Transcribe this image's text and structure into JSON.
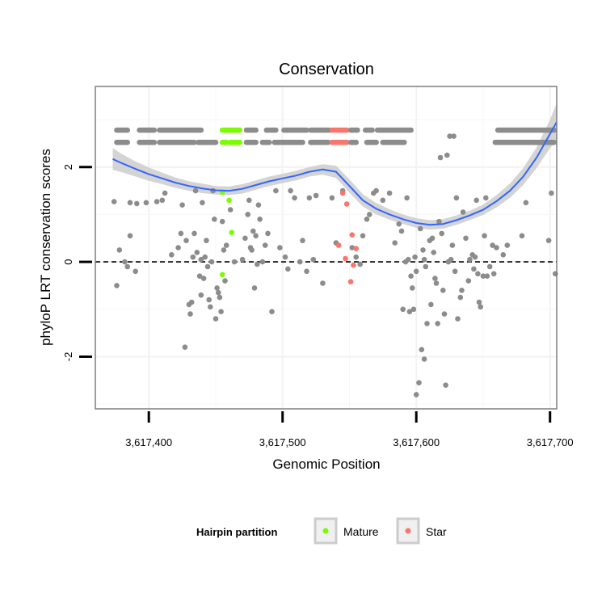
{
  "chart_data": {
    "type": "scatter",
    "title": "Conservation",
    "xlabel": "Genomic Position",
    "ylabel": "phyloP LRT conservation scores",
    "xlim": [
      3617360,
      3617705
    ],
    "ylim": [
      -3.1,
      3.7
    ],
    "x_ticks": [
      3617400,
      3617500,
      3617600,
      3617700
    ],
    "x_tick_labels": [
      "3,617,400",
      "3,617,500",
      "3,617,600",
      "3,617,700"
    ],
    "y_ticks": [
      -2,
      0,
      2
    ],
    "y_tick_labels": [
      "-2",
      "0",
      "2"
    ],
    "grid": true,
    "reference_line": {
      "y": 0,
      "style": "dashed"
    },
    "legend": {
      "title": "Hairpin partition",
      "placement": "bottom",
      "entries": [
        {
          "name": "Mature",
          "color": "#7cfc00"
        },
        {
          "name": "Star",
          "color": "#f8766d"
        }
      ]
    },
    "colors": {
      "other": "#8c8c8c",
      "mature": "#7cfc00",
      "star": "#f8766d",
      "smooth": "#3366ff",
      "band": "#cccccc"
    },
    "top_bands": [
      {
        "y": 2.78,
        "segments": [
          {
            "from": 3617376,
            "to": 3617384,
            "group": "other"
          },
          {
            "from": 3617393,
            "to": 3617404,
            "group": "other"
          },
          {
            "from": 3617408,
            "to": 3617439,
            "group": "other"
          },
          {
            "from": 3617455,
            "to": 3617468,
            "group": "mature"
          },
          {
            "from": 3617473,
            "to": 3617480,
            "group": "other"
          },
          {
            "from": 3617488,
            "to": 3617495,
            "group": "other"
          },
          {
            "from": 3617501,
            "to": 3617518,
            "group": "other"
          },
          {
            "from": 3617521,
            "to": 3617535,
            "group": "other"
          },
          {
            "from": 3617537,
            "to": 3617548,
            "group": "star"
          },
          {
            "from": 3617551,
            "to": 3617556,
            "group": "other"
          },
          {
            "from": 3617562,
            "to": 3617567,
            "group": "other"
          },
          {
            "from": 3617571,
            "to": 3617596,
            "group": "other"
          },
          {
            "from": 3617661,
            "to": 3617703,
            "group": "other"
          }
        ]
      },
      {
        "y": 2.52,
        "segments": [
          {
            "from": 3617376,
            "to": 3617384,
            "group": "other"
          },
          {
            "from": 3617393,
            "to": 3617404,
            "group": "other"
          },
          {
            "from": 3617408,
            "to": 3617434,
            "group": "other"
          },
          {
            "from": 3617437,
            "to": 3617450,
            "group": "other"
          },
          {
            "from": 3617455,
            "to": 3617458,
            "group": "mature"
          },
          {
            "from": 3617461,
            "to": 3617468,
            "group": "mature"
          },
          {
            "from": 3617473,
            "to": 3617480,
            "group": "other"
          },
          {
            "from": 3617485,
            "to": 3617490,
            "group": "other"
          },
          {
            "from": 3617494,
            "to": 3617515,
            "group": "other"
          },
          {
            "from": 3617521,
            "to": 3617534,
            "group": "other"
          },
          {
            "from": 3617537,
            "to": 3617548,
            "group": "star"
          },
          {
            "from": 3617551,
            "to": 3617555,
            "group": "other"
          },
          {
            "from": 3617563,
            "to": 3617570,
            "group": "other"
          },
          {
            "from": 3617575,
            "to": 3617591,
            "group": "other"
          },
          {
            "from": 3617659,
            "to": 3617703,
            "group": "other"
          }
        ]
      }
    ],
    "points": [
      [
        3617374,
        1.27,
        "other"
      ],
      [
        3617376,
        -0.5,
        "other"
      ],
      [
        3617378,
        0.25,
        "other"
      ],
      [
        3617382,
        0.0,
        "other"
      ],
      [
        3617384,
        -0.1,
        "other"
      ],
      [
        3617386,
        0.55,
        "other"
      ],
      [
        3617386,
        1.25,
        "other"
      ],
      [
        3617390,
        -0.2,
        "other"
      ],
      [
        3617391,
        1.23,
        "other"
      ],
      [
        3617398,
        1.25,
        "other"
      ],
      [
        3617406,
        1.27,
        "other"
      ],
      [
        3617410,
        1.3,
        "other"
      ],
      [
        3617412,
        1.45,
        "other"
      ],
      [
        3617417,
        0.15,
        "other"
      ],
      [
        3617422,
        0.3,
        "other"
      ],
      [
        3617424,
        0.6,
        "other"
      ],
      [
        3617425,
        1.2,
        "other"
      ],
      [
        3617427,
        -1.8,
        "other"
      ],
      [
        3617428,
        0.45,
        "other"
      ],
      [
        3617430,
        -0.9,
        "other"
      ],
      [
        3617431,
        -1.1,
        "other"
      ],
      [
        3617432,
        -0.85,
        "other"
      ],
      [
        3617433,
        0.1,
        "other"
      ],
      [
        3617434,
        0.6,
        "other"
      ],
      [
        3617435,
        1.5,
        "other"
      ],
      [
        3617436,
        0.2,
        "other"
      ],
      [
        3617438,
        -0.3,
        "other"
      ],
      [
        3617439,
        0.05,
        "other"
      ],
      [
        3617439,
        -0.7,
        "other"
      ],
      [
        3617440,
        1.25,
        "other"
      ],
      [
        3617441,
        -0.35,
        "other"
      ],
      [
        3617442,
        0.1,
        "other"
      ],
      [
        3617443,
        0.45,
        "other"
      ],
      [
        3617444,
        -0.1,
        "other"
      ],
      [
        3617445,
        -0.8,
        "other"
      ],
      [
        3617446,
        -0.95,
        "other"
      ],
      [
        3617447,
        0.0,
        "other"
      ],
      [
        3617448,
        1.5,
        "other"
      ],
      [
        3617449,
        0.9,
        "other"
      ],
      [
        3617450,
        -1.2,
        "other"
      ],
      [
        3617451,
        -0.55,
        "other"
      ],
      [
        3617452,
        -0.65,
        "other"
      ],
      [
        3617453,
        -0.75,
        "other"
      ],
      [
        3617454,
        -1.05,
        "other"
      ],
      [
        3617455,
        0.85,
        "other"
      ],
      [
        3617456,
        0.25,
        "other"
      ],
      [
        3617457,
        -0.4,
        "other"
      ],
      [
        3617458,
        0.35,
        "other"
      ],
      [
        3617461,
        1.1,
        "other"
      ],
      [
        3617464,
        0.0,
        "other"
      ],
      [
        3617470,
        0.05,
        "other"
      ],
      [
        3617472,
        0.5,
        "other"
      ],
      [
        3617474,
        1.0,
        "other"
      ],
      [
        3617475,
        1.3,
        "other"
      ],
      [
        3617476,
        0.3,
        "other"
      ],
      [
        3617477,
        0.25,
        "other"
      ],
      [
        3617478,
        0.65,
        "other"
      ],
      [
        3617479,
        -0.55,
        "other"
      ],
      [
        3617480,
        0.55,
        "other"
      ],
      [
        3617481,
        -0.05,
        "other"
      ],
      [
        3617482,
        1.2,
        "other"
      ],
      [
        3617483,
        0.9,
        "other"
      ],
      [
        3617485,
        0.0,
        "other"
      ],
      [
        3617487,
        0.35,
        "other"
      ],
      [
        3617489,
        0.6,
        "other"
      ],
      [
        3617492,
        -1.05,
        "other"
      ],
      [
        3617495,
        1.5,
        "other"
      ],
      [
        3617498,
        0.3,
        "other"
      ],
      [
        3617502,
        0.1,
        "other"
      ],
      [
        3617504,
        -0.15,
        "other"
      ],
      [
        3617506,
        1.5,
        "other"
      ],
      [
        3617509,
        1.35,
        "other"
      ],
      [
        3617513,
        0.0,
        "other"
      ],
      [
        3617515,
        0.45,
        "other"
      ],
      [
        3617518,
        -0.2,
        "other"
      ],
      [
        3617520,
        1.35,
        "other"
      ],
      [
        3617523,
        0.05,
        "other"
      ],
      [
        3617525,
        1.4,
        "other"
      ],
      [
        3617530,
        -0.45,
        "other"
      ],
      [
        3617537,
        1.35,
        "other"
      ],
      [
        3617540,
        0.4,
        "other"
      ],
      [
        3617545,
        1.5,
        "other"
      ],
      [
        3617552,
        0.3,
        "other"
      ],
      [
        3617555,
        0.1,
        "other"
      ],
      [
        3617558,
        -0.05,
        "other"
      ],
      [
        3617560,
        0.55,
        "other"
      ],
      [
        3617563,
        0.9,
        "other"
      ],
      [
        3617565,
        1.0,
        "other"
      ],
      [
        3617568,
        1.45,
        "other"
      ],
      [
        3617570,
        1.5,
        "other"
      ],
      [
        3617575,
        1.3,
        "other"
      ],
      [
        3617580,
        1.45,
        "other"
      ],
      [
        3617584,
        0.4,
        "other"
      ],
      [
        3617587,
        0.8,
        "other"
      ],
      [
        3617589,
        0.65,
        "other"
      ],
      [
        3617590,
        -1.0,
        "other"
      ],
      [
        3617592,
        0.0,
        "other"
      ],
      [
        3617593,
        1.35,
        "other"
      ],
      [
        3617594,
        0.05,
        "other"
      ],
      [
        3617595,
        -1.05,
        "other"
      ],
      [
        3617596,
        -0.3,
        "other"
      ],
      [
        3617597,
        -0.55,
        "other"
      ],
      [
        3617598,
        -1.0,
        "other"
      ],
      [
        3617599,
        0.1,
        "other"
      ],
      [
        3617600,
        -0.2,
        "other"
      ],
      [
        3617600,
        -2.8,
        "other"
      ],
      [
        3617602,
        -2.55,
        "other"
      ],
      [
        3617603,
        0.7,
        "other"
      ],
      [
        3617604,
        -1.85,
        "other"
      ],
      [
        3617605,
        0.25,
        "other"
      ],
      [
        3617606,
        0.05,
        "other"
      ],
      [
        3617606,
        -2.05,
        "other"
      ],
      [
        3617607,
        -0.1,
        "other"
      ],
      [
        3617608,
        -1.3,
        "other"
      ],
      [
        3617610,
        0.45,
        "other"
      ],
      [
        3617611,
        -0.9,
        "other"
      ],
      [
        3617612,
        0.5,
        "other"
      ],
      [
        3617613,
        0.2,
        "other"
      ],
      [
        3617614,
        -0.35,
        "other"
      ],
      [
        3617615,
        -0.45,
        "other"
      ],
      [
        3617616,
        -1.3,
        "other"
      ],
      [
        3617617,
        0.85,
        "other"
      ],
      [
        3617618,
        2.2,
        "other"
      ],
      [
        3617619,
        0.6,
        "other"
      ],
      [
        3617620,
        -0.6,
        "other"
      ],
      [
        3617621,
        -1.1,
        "other"
      ],
      [
        3617622,
        -2.6,
        "other"
      ],
      [
        3617623,
        2.25,
        "other"
      ],
      [
        3617624,
        0.0,
        "other"
      ],
      [
        3617625,
        2.65,
        "other"
      ],
      [
        3617626,
        0.05,
        "other"
      ],
      [
        3617627,
        0.35,
        "other"
      ],
      [
        3617628,
        2.65,
        "other"
      ],
      [
        3617629,
        -0.2,
        "other"
      ],
      [
        3617630,
        1.35,
        "other"
      ],
      [
        3617631,
        -1.2,
        "other"
      ],
      [
        3617633,
        -0.75,
        "other"
      ],
      [
        3617634,
        -0.6,
        "other"
      ],
      [
        3617635,
        1.05,
        "other"
      ],
      [
        3617637,
        0.5,
        "other"
      ],
      [
        3617639,
        -0.4,
        "other"
      ],
      [
        3617640,
        0.05,
        "other"
      ],
      [
        3617642,
        0.15,
        "other"
      ],
      [
        3617643,
        -0.15,
        "other"
      ],
      [
        3617644,
        0.1,
        "other"
      ],
      [
        3617645,
        1.3,
        "other"
      ],
      [
        3617646,
        -0.25,
        "other"
      ],
      [
        3617647,
        -0.85,
        "other"
      ],
      [
        3617648,
        -0.95,
        "other"
      ],
      [
        3617650,
        -0.3,
        "other"
      ],
      [
        3617651,
        0.55,
        "other"
      ],
      [
        3617652,
        1.35,
        "other"
      ],
      [
        3617653,
        -0.3,
        "other"
      ],
      [
        3617655,
        -0.1,
        "other"
      ],
      [
        3617657,
        0.35,
        "other"
      ],
      [
        3617658,
        -0.25,
        "other"
      ],
      [
        3617660,
        0.3,
        "other"
      ],
      [
        3617665,
        0.15,
        "other"
      ],
      [
        3617668,
        0.35,
        "other"
      ],
      [
        3617679,
        0.55,
        "other"
      ],
      [
        3617682,
        1.25,
        "other"
      ],
      [
        3617699,
        0.45,
        "other"
      ],
      [
        3617701,
        1.45,
        "other"
      ],
      [
        3617704,
        -0.25,
        "other"
      ],
      [
        3617455,
        1.47,
        "mature"
      ],
      [
        3617460,
        1.3,
        "mature"
      ],
      [
        3617462,
        0.62,
        "mature"
      ],
      [
        3617455,
        -0.27,
        "mature"
      ],
      [
        3617545,
        1.45,
        "star"
      ],
      [
        3617548,
        1.22,
        "star"
      ],
      [
        3617542,
        0.35,
        "star"
      ],
      [
        3617552,
        0.57,
        "star"
      ],
      [
        3617555,
        0.28,
        "star"
      ],
      [
        3617547,
        0.07,
        "star"
      ],
      [
        3617553,
        -0.07,
        "star"
      ],
      [
        3617551,
        -0.42,
        "star"
      ]
    ],
    "smooth": {
      "x": [
        3617373,
        3617380,
        3617390,
        3617400,
        3617410,
        3617420,
        3617430,
        3617440,
        3617450,
        3617460,
        3617470,
        3617480,
        3617490,
        3617500,
        3617510,
        3617520,
        3617530,
        3617540,
        3617550,
        3617560,
        3617570,
        3617580,
        3617590,
        3617600,
        3617610,
        3617620,
        3617630,
        3617640,
        3617650,
        3617660,
        3617670,
        3617680,
        3617690,
        3617700,
        3617705
      ],
      "y": [
        2.17,
        2.08,
        1.96,
        1.85,
        1.76,
        1.67,
        1.6,
        1.55,
        1.51,
        1.5,
        1.54,
        1.62,
        1.7,
        1.76,
        1.82,
        1.9,
        1.95,
        1.9,
        1.6,
        1.3,
        1.12,
        1.0,
        0.9,
        0.82,
        0.78,
        0.8,
        0.88,
        0.98,
        1.1,
        1.28,
        1.5,
        1.8,
        2.2,
        2.7,
        2.95
      ],
      "lo": [
        1.94,
        1.89,
        1.8,
        1.71,
        1.64,
        1.56,
        1.5,
        1.45,
        1.42,
        1.41,
        1.44,
        1.52,
        1.6,
        1.66,
        1.72,
        1.8,
        1.84,
        1.77,
        1.46,
        1.17,
        1.0,
        0.89,
        0.8,
        0.72,
        0.68,
        0.7,
        0.78,
        0.88,
        0.99,
        1.15,
        1.35,
        1.62,
        1.98,
        2.4,
        2.55
      ],
      "hi": [
        2.4,
        2.27,
        2.12,
        1.99,
        1.88,
        1.78,
        1.7,
        1.65,
        1.6,
        1.59,
        1.64,
        1.72,
        1.8,
        1.86,
        1.92,
        2.0,
        2.06,
        2.03,
        1.74,
        1.43,
        1.24,
        1.11,
        1.0,
        0.92,
        0.88,
        0.9,
        0.98,
        1.08,
        1.21,
        1.41,
        1.65,
        1.98,
        2.42,
        3.0,
        3.35
      ]
    }
  }
}
